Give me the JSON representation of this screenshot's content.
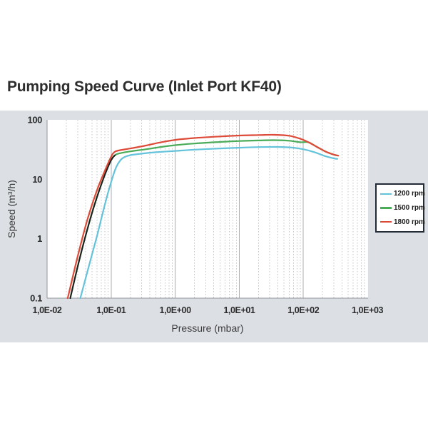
{
  "chart_data": {
    "type": "line",
    "title": "Pumping Speed Curve (Inlet Port KF40)",
    "xlabel": "Pressure (mbar)",
    "ylabel": "Speed (m³/h)",
    "x_scale": "log",
    "y_scale": "log",
    "xlim": [
      0.01,
      1000
    ],
    "ylim": [
      0.1,
      100
    ],
    "grid": {
      "vertical_major": true,
      "vertical_minor_dotted": true,
      "horizontal": false
    },
    "x_ticks": [
      {
        "value": 0.01,
        "label": "1,0E-02"
      },
      {
        "value": 0.1,
        "label": "1,0E-01"
      },
      {
        "value": 1,
        "label": "1,0E+00"
      },
      {
        "value": 10,
        "label": "1,0E+01"
      },
      {
        "value": 100,
        "label": "1,0E+02"
      },
      {
        "value": 1000,
        "label": "1,0E+03"
      }
    ],
    "y_ticks": [
      {
        "value": 100,
        "label": "100"
      },
      {
        "value": 10,
        "label": "10"
      },
      {
        "value": 1,
        "label": "1"
      },
      {
        "value": 0.1,
        "label": "0.1"
      }
    ],
    "series": [
      {
        "name": "1200 rpm",
        "color": "#64c3da",
        "points": [
          [
            0.033,
            0.1
          ],
          [
            0.045,
            0.35
          ],
          [
            0.06,
            1.1
          ],
          [
            0.08,
            3.8
          ],
          [
            0.1,
            9
          ],
          [
            0.12,
            16
          ],
          [
            0.14,
            21
          ],
          [
            0.16,
            23.5
          ],
          [
            0.2,
            25.5
          ],
          [
            0.3,
            27
          ],
          [
            0.5,
            28.5
          ],
          [
            1,
            30
          ],
          [
            2,
            31.5
          ],
          [
            5,
            33
          ],
          [
            10,
            34
          ],
          [
            20,
            34.8
          ],
          [
            40,
            35
          ],
          [
            70,
            34
          ],
          [
            100,
            32
          ],
          [
            150,
            28.5
          ],
          [
            220,
            24.5
          ],
          [
            300,
            22.5
          ],
          [
            340,
            22
          ]
        ]
      },
      {
        "name": "1500 rpm",
        "color": "#4aab58",
        "points": [
          [
            0.023,
            0.1
          ],
          [
            0.032,
            0.45
          ],
          [
            0.045,
            1.8
          ],
          [
            0.06,
            5
          ],
          [
            0.08,
            12
          ],
          [
            0.1,
            21
          ],
          [
            0.115,
            25.5
          ],
          [
            0.14,
            27.5
          ],
          [
            0.2,
            29.5
          ],
          [
            0.35,
            32
          ],
          [
            0.6,
            35
          ],
          [
            1,
            37.5
          ],
          [
            2,
            40
          ],
          [
            5,
            42.5
          ],
          [
            10,
            44
          ],
          [
            20,
            45
          ],
          [
            35,
            45.5
          ],
          [
            60,
            44.5
          ],
          [
            90,
            42
          ],
          [
            120,
            42
          ],
          [
            160,
            35.5
          ],
          [
            220,
            29.5
          ],
          [
            300,
            26
          ],
          [
            340,
            25.2
          ]
        ]
      },
      {
        "name": "1800 rpm",
        "color": "#dd4a38",
        "points": [
          [
            0.021,
            0.1
          ],
          [
            0.03,
            0.5
          ],
          [
            0.042,
            2
          ],
          [
            0.06,
            6.5
          ],
          [
            0.08,
            14
          ],
          [
            0.1,
            24
          ],
          [
            0.112,
            28.5
          ],
          [
            0.13,
            30.5
          ],
          [
            0.2,
            33
          ],
          [
            0.35,
            37
          ],
          [
            0.6,
            42
          ],
          [
            1,
            46
          ],
          [
            2,
            49.5
          ],
          [
            5,
            52.5
          ],
          [
            10,
            54.5
          ],
          [
            20,
            55.5
          ],
          [
            35,
            56
          ],
          [
            60,
            54
          ],
          [
            90,
            48
          ],
          [
            120,
            42
          ],
          [
            160,
            35.5
          ],
          [
            220,
            29.5
          ],
          [
            300,
            26
          ],
          [
            350,
            25
          ]
        ]
      }
    ],
    "overlap_segment": {
      "series": "1500 rpm",
      "max_pressure": 0.118,
      "color": "#1e1e1e"
    }
  },
  "colors": {
    "panel_background": "#dce0e5",
    "plot_background": "#ffffff",
    "grid_major": "#a9aeb4",
    "grid_minor": "#c0c4c9",
    "axis": "#8f949a",
    "tick_label": "#2b2b2b",
    "axis_label": "#3a3a3a",
    "title": "#2d2d2d",
    "legend_border": "#222a35",
    "legend_background": "#ffffff"
  },
  "legend": {
    "position": "right",
    "entries": [
      "1200 rpm",
      "1500 rpm",
      "1800 rpm"
    ]
  }
}
